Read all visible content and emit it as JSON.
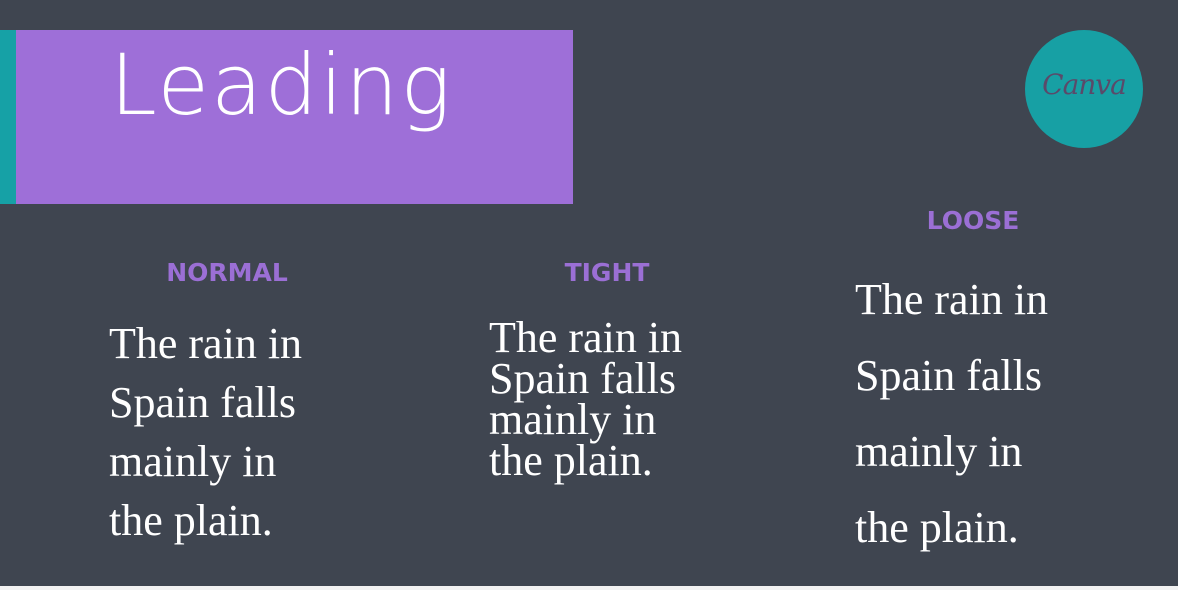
{
  "slide": {
    "title": "Leading",
    "logo_text": "Canva",
    "columns": [
      {
        "label": "NORMAL",
        "lines": [
          "The rain in",
          "Spain falls",
          "mainly in",
          "the plain."
        ]
      },
      {
        "label": "TIGHT",
        "lines": [
          "The rain in",
          "Spain falls",
          "mainly in",
          "the plain."
        ]
      },
      {
        "label": "LOOSE",
        "lines": [
          "The rain in",
          "Spain falls",
          "mainly in",
          "the plain."
        ]
      }
    ]
  },
  "colors": {
    "background": "#3f4550",
    "title_bar": "#9e6fd8",
    "accent": "#16a1a6",
    "label": "#9b6fd5",
    "text": "#ffffff",
    "logo": "#17a0a4"
  }
}
